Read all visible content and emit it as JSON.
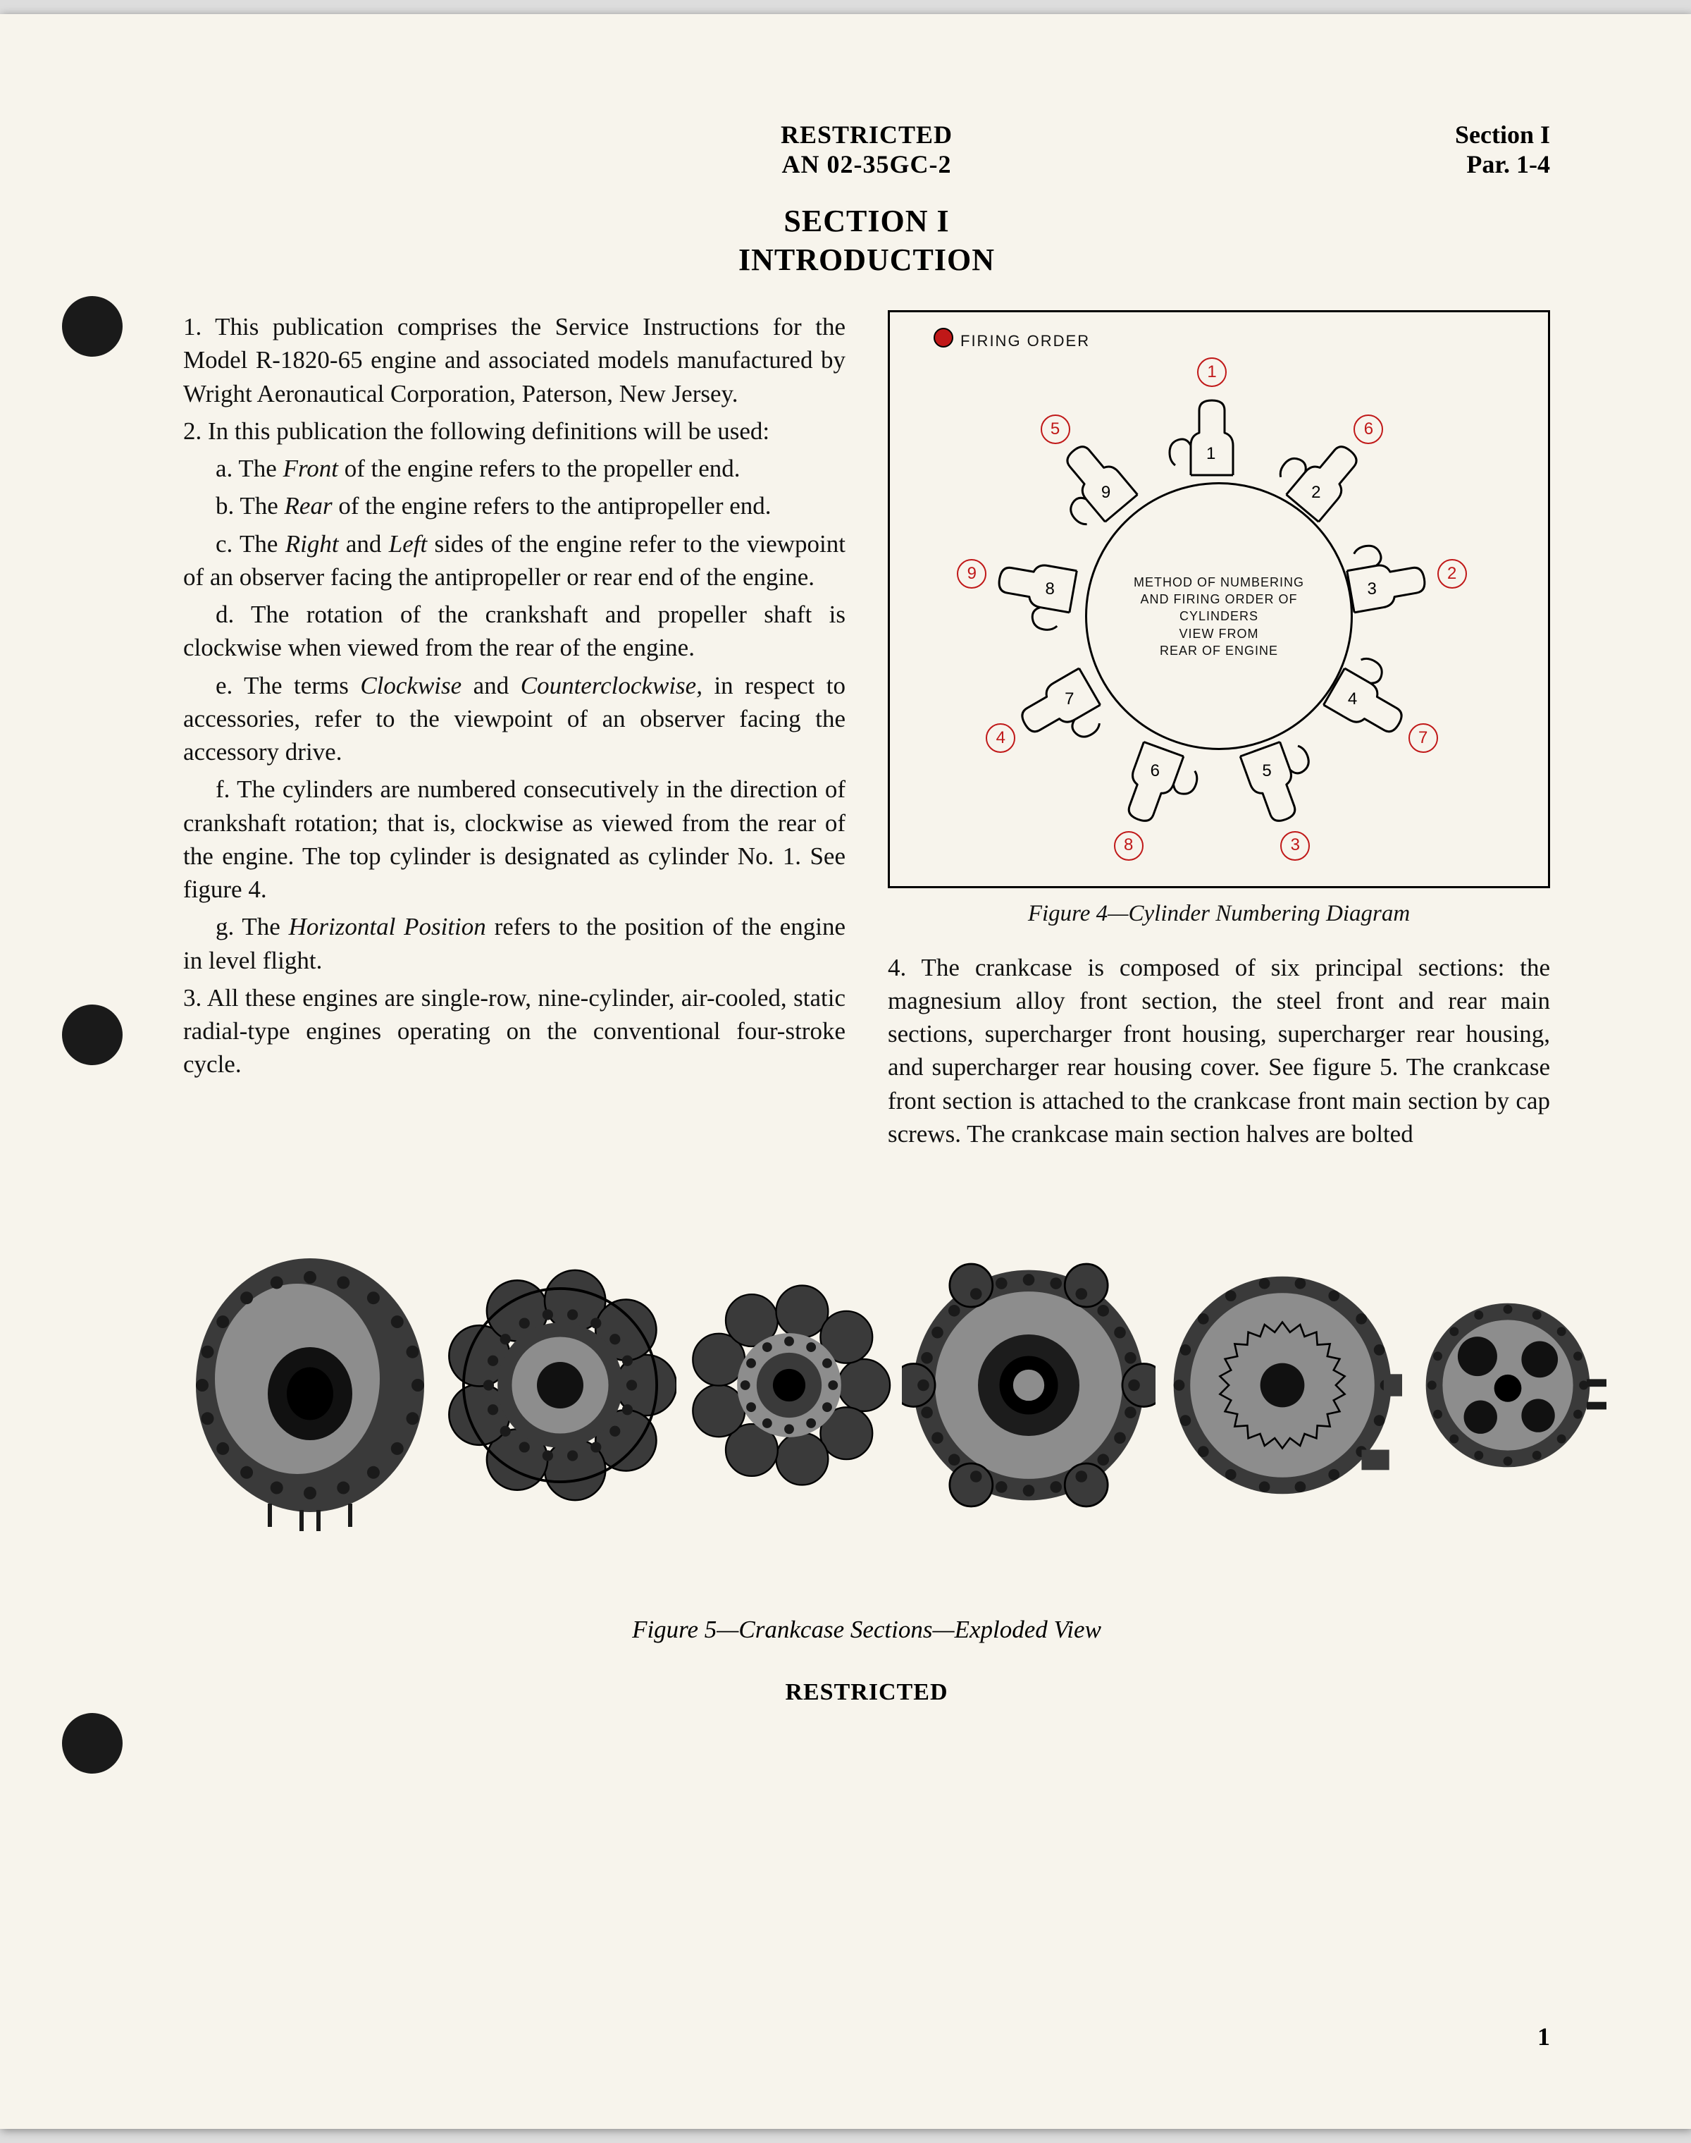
{
  "header": {
    "restricted": "RESTRICTED",
    "doc_no": "AN 02-35GC-2",
    "section_right_1": "Section I",
    "section_right_2": "Par. 1-4"
  },
  "title": {
    "line1": "SECTION I",
    "line2": "INTRODUCTION"
  },
  "left_paras": {
    "p1": "1. This publication comprises the Service Instructions for the Model R-1820-65 engine and associated models manufactured by Wright Aeronautical Corporation, Paterson, New Jersey.",
    "p2": "2. In this publication the following definitions will be used:",
    "a_pre": "a. The ",
    "a_em": "Front",
    "a_post": " of the engine refers to the propeller end.",
    "b_pre": "b. The ",
    "b_em": "Rear",
    "b_post": " of the engine refers to the antipropeller end.",
    "c_pre": "c. The ",
    "c_em1": "Right",
    "c_mid": " and ",
    "c_em2": "Left",
    "c_post": " sides of the engine refer to the viewpoint of an observer facing the antipropeller or rear end of the engine.",
    "d": "d. The rotation of the crankshaft and propeller shaft is clockwise when viewed from the rear of the engine.",
    "e_pre": "e. The terms ",
    "e_em1": "Clockwise",
    "e_mid": " and ",
    "e_em2": "Counterclockwise,",
    "e_post": " in respect to accessories, refer to the viewpoint of an observer facing the accessory drive.",
    "f": "f. The cylinders are numbered consecutively in the direction of crankshaft rotation; that is, clockwise as viewed from the rear of the engine. The top cylinder is designated as cylinder No. 1. See figure 4.",
    "g_pre": "g. The ",
    "g_em": "Horizontal Position",
    "g_post": " refers to the position of the engine in level flight.",
    "p3": "3. All these engines are single-row, nine-cylinder, air-cooled, static radial-type engines operating on the conventional four-stroke cycle."
  },
  "fig4": {
    "firing_label": "FIRING ORDER",
    "hub_l1": "METHOD OF NUMBERING",
    "hub_l2": "AND FIRING ORDER OF",
    "hub_l3": "CYLINDERS",
    "hub_l4": "VIEW FROM",
    "hub_l5": "REAR OF ENGINE",
    "caption": "Figure 4—Cylinder Numbering Diagram",
    "cylinders": [
      {
        "num": "1",
        "angle": 0
      },
      {
        "num": "2",
        "angle": 40
      },
      {
        "num": "3",
        "angle": 80
      },
      {
        "num": "4",
        "angle": 120
      },
      {
        "num": "5",
        "angle": 160
      },
      {
        "num": "6",
        "angle": 200
      },
      {
        "num": "7",
        "angle": 240
      },
      {
        "num": "8",
        "angle": 280
      },
      {
        "num": "9",
        "angle": 320
      }
    ],
    "firing_order": [
      {
        "label": "1",
        "angle": 0
      },
      {
        "label": "6",
        "angle": 40
      },
      {
        "label": "2",
        "angle": 80
      },
      {
        "label": "7",
        "angle": 120
      },
      {
        "label": "3",
        "angle": 160
      },
      {
        "label": "8",
        "angle": 200
      },
      {
        "label": "4",
        "angle": 240
      },
      {
        "label": "9",
        "angle": 280
      },
      {
        "label": "5",
        "angle": 320
      }
    ],
    "colors": {
      "firing": "#c01818",
      "line": "#000000",
      "bg": "#f7f4ec"
    },
    "hub_radius": 190,
    "cyl_radius_inner": 196,
    "num_radius": 232,
    "fire_radius": 346
  },
  "right_paras": {
    "p4": "4. The crankcase is composed of six principal sections: the magnesium alloy front section, the steel front and rear main sections, supercharger front housing, supercharger rear housing, and supercharger rear housing cover. See figure 5. The crankcase front section is attached to the crankcase front main section by cap screws. The crankcase main section halves are bolted"
  },
  "fig5": {
    "caption": "Figure 5—Crankcase Sections—Exploded View",
    "parts_count": 6,
    "part_fill": "#3a3a3a",
    "part_highlight": "#8d8d8d",
    "bolt_color": "#1a1a1a",
    "sizes": [
      360,
      330,
      300,
      360,
      340,
      280
    ]
  },
  "footer": {
    "restricted": "RESTRICTED",
    "page": "1"
  }
}
